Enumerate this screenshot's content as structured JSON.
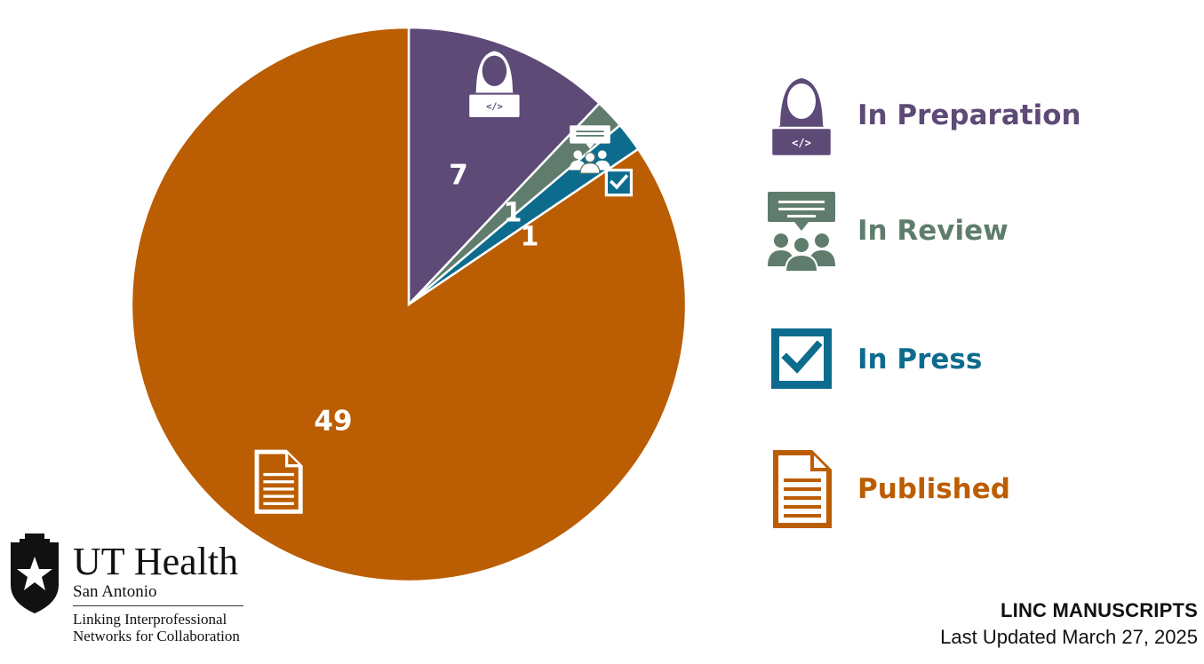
{
  "chart_data": {
    "type": "pie",
    "title": "LINC MANUSCRIPTS",
    "subtitle": "Last Updated March 27, 2025",
    "slices": [
      {
        "label": "In Preparation",
        "value": 7,
        "color": "#5d4a77",
        "icon": "coder-icon"
      },
      {
        "label": "In Review",
        "value": 1,
        "color": "#5f7c6c",
        "icon": "review-group-icon"
      },
      {
        "label": "In Press",
        "value": 1,
        "color": "#0d6c8e",
        "icon": "checkbox-icon"
      },
      {
        "label": "Published",
        "value": 49,
        "color": "#bb5d02",
        "icon": "document-icon"
      }
    ],
    "start_angle": "12 o'clock",
    "direction": "clockwise",
    "legend": "right"
  },
  "logo": {
    "name": "UT Health",
    "subname": "San Antonio",
    "tagline_line1": "Linking Interprofessional",
    "tagline_line2": "Networks for Collaboration"
  }
}
